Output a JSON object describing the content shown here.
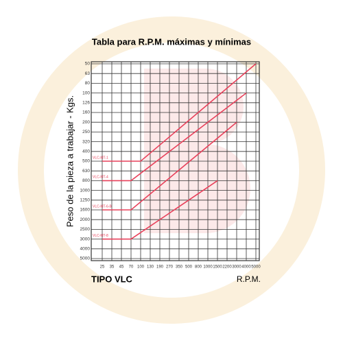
{
  "chart_data": {
    "type": "line",
    "title": "Tabla para R.P.M. máximas y mínimas",
    "y_label": "Peso de la pieza a trabajar - Kgs.",
    "x_label_left": "TIPO VLC",
    "x_label_right": "R.P.M.",
    "xticks": [
      25,
      35,
      45,
      70,
      100,
      130,
      190,
      270,
      350,
      500,
      800,
      1000,
      1500,
      2200,
      3000,
      4000,
      5000
    ],
    "yticks": [
      50,
      63,
      80,
      100,
      126,
      160,
      200,
      250,
      320,
      400,
      500,
      630,
      800,
      1000,
      1250,
      1600,
      2000,
      2500,
      3000,
      4000,
      5000
    ],
    "grid": true,
    "series": [
      {
        "name": "VLC-MT-1",
        "color": "#e8405a",
        "x": [
          25,
          100,
          5000
        ],
        "values": [
          500,
          500,
          50
        ]
      },
      {
        "name": "VLC-MT-4",
        "color": "#e8405a",
        "x": [
          25,
          70,
          4000
        ],
        "values": [
          800,
          800,
          100
        ]
      },
      {
        "name": "VLC-MT-6-B",
        "color": "#e8405a",
        "x": [
          25,
          70,
          3000
        ],
        "values": [
          1600,
          1600,
          200
        ]
      },
      {
        "name": "VLC-MT-8",
        "color": "#e8405a",
        "x": [
          25,
          70,
          1500
        ],
        "values": [
          3000,
          3000,
          800
        ]
      }
    ]
  }
}
